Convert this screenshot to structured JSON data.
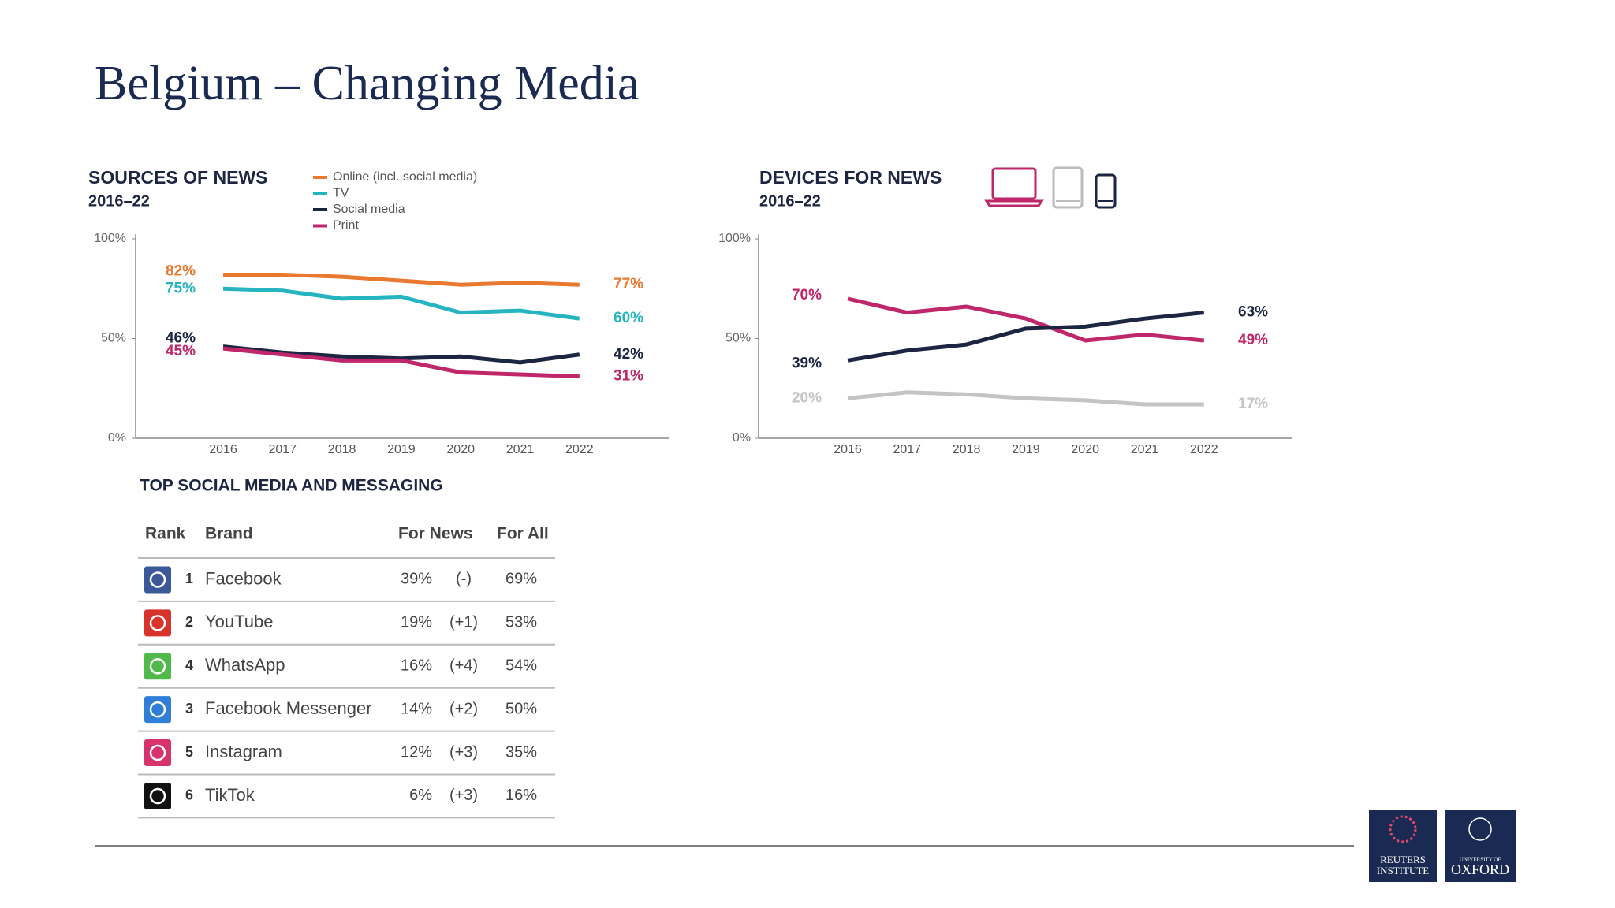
{
  "title": "Belgium – Changing Media",
  "chart_data": [
    {
      "type": "line",
      "title": "SOURCES OF NEWS",
      "subtitle": "2016–22",
      "categories": [
        "2016",
        "2017",
        "2018",
        "2019",
        "2020",
        "2021",
        "2022"
      ],
      "series": [
        {
          "name": "Online (incl. social media)",
          "color": "#e8792f",
          "values": [
            82,
            82,
            81,
            79,
            77,
            78,
            77
          ],
          "value_labels": [
            "82%",
            null,
            null,
            null,
            null,
            null,
            "77%"
          ]
        },
        {
          "name": "TV",
          "color": "#26b5c0",
          "values": [
            75,
            74,
            70,
            71,
            63,
            64,
            60
          ],
          "value_labels": [
            "75%",
            null,
            null,
            null,
            null,
            null,
            "60%"
          ]
        },
        {
          "name": "Social media",
          "color": "#1c2541",
          "values": [
            46,
            43,
            41,
            40,
            41,
            38,
            42
          ],
          "value_labels": [
            "46%",
            null,
            null,
            null,
            null,
            null,
            "42%"
          ]
        },
        {
          "name": "Print",
          "color": "#c0266a",
          "values": [
            45,
            42,
            39,
            39,
            33,
            32,
            31
          ],
          "value_labels": [
            "45%",
            null,
            null,
            null,
            null,
            null,
            "31%"
          ]
        }
      ],
      "ylim": [
        0,
        100
      ],
      "yticks": [
        {
          "value": 0,
          "label": "0%"
        },
        {
          "value": 50,
          "label": "50%"
        },
        {
          "value": 100,
          "label": "100%"
        }
      ]
    },
    {
      "type": "line",
      "title": "DEVICES FOR NEWS",
      "subtitle": "2016–22",
      "categories": [
        "2016",
        "2017",
        "2018",
        "2019",
        "2020",
        "2021",
        "2022"
      ],
      "series": [
        {
          "color": "#c0266a",
          "values": [
            70,
            63,
            66,
            60,
            49,
            52,
            49
          ],
          "value_labels": [
            "70%",
            null,
            null,
            null,
            null,
            null,
            "49%"
          ]
        },
        {
          "color": "#1c2541",
          "values": [
            39,
            44,
            47,
            55,
            56,
            60,
            63
          ],
          "value_labels": [
            "39%",
            null,
            null,
            null,
            null,
            null,
            "63%"
          ]
        },
        {
          "color": "#c4c4c4",
          "values": [
            20,
            23,
            22,
            20,
            19,
            17,
            17
          ],
          "value_labels": [
            "20%",
            null,
            null,
            null,
            null,
            null,
            "17%"
          ]
        }
      ],
      "ylim": [
        0,
        100
      ],
      "yticks": [
        {
          "value": 0,
          "label": "0%"
        },
        {
          "value": 50,
          "label": "50%"
        },
        {
          "value": 100,
          "label": "100%"
        }
      ]
    }
  ],
  "table": {
    "title": "TOP SOCIAL MEDIA AND MESSAGING",
    "headers": [
      "Rank",
      "Brand",
      "For News",
      "For All"
    ],
    "rows": [
      {
        "rank": "1",
        "brand": "Facebook",
        "for_news": "39%",
        "change": "(-)",
        "for_all": "69%"
      },
      {
        "rank": "2",
        "brand": "YouTube",
        "for_news": "19%",
        "change": "(+1)",
        "for_all": "53%"
      },
      {
        "rank": "4",
        "brand": "WhatsApp",
        "for_news": "16%",
        "change": "(+4)",
        "for_all": "54%"
      },
      {
        "rank": "3",
        "brand": "Facebook Messenger",
        "for_news": "14%",
        "change": "(+2)",
        "for_all": "50%"
      },
      {
        "rank": "5",
        "brand": "Instagram",
        "for_news": "12%",
        "change": "(+3)",
        "for_all": "35%"
      },
      {
        "rank": "6",
        "brand": "TikTok",
        "for_news": "6%",
        "change": "(+3)",
        "for_all": "16%"
      }
    ]
  },
  "logos": {
    "reuters": [
      "REUTERS",
      "INSTITUTE"
    ],
    "oxford": [
      "UNIVERSITY OF",
      "OXFORD"
    ]
  }
}
